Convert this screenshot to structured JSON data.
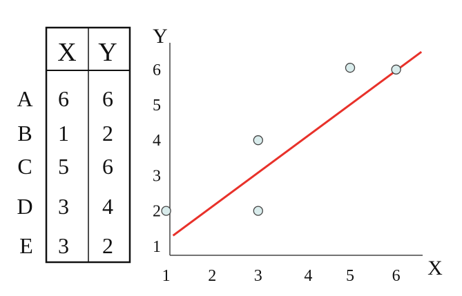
{
  "table": {
    "headers": [
      "X",
      "Y"
    ],
    "rows": [
      {
        "label": "A",
        "x": "6",
        "y": "6"
      },
      {
        "label": "B",
        "x": "1",
        "y": "2"
      },
      {
        "label": "C",
        "x": "5",
        "y": "6"
      },
      {
        "label": "D",
        "x": "3",
        "y": "4"
      },
      {
        "label": "E",
        "x": "3",
        "y": "2"
      }
    ]
  },
  "chart_data": {
    "type": "scatter",
    "title": "",
    "xlabel": "X",
    "ylabel": "Y",
    "xlim": [
      0,
      6.5
    ],
    "ylim": [
      0.7,
      6.6
    ],
    "xticks": [
      1,
      2,
      3,
      4,
      5,
      6
    ],
    "yticks": [
      1,
      2,
      3,
      4,
      5,
      6
    ],
    "grid": false,
    "points": [
      {
        "x": 1,
        "y": 2
      },
      {
        "x": 3,
        "y": 4
      },
      {
        "x": 3,
        "y": 2
      },
      {
        "x": 5,
        "y": 6.05
      },
      {
        "x": 6,
        "y": 6
      }
    ],
    "regression_line": {
      "x": [
        1.15,
        6.55
      ],
      "y": [
        1.3,
        6.5
      ],
      "color": "#e8312a"
    },
    "point_fill": "#d9ecec",
    "point_stroke": "#444444"
  }
}
